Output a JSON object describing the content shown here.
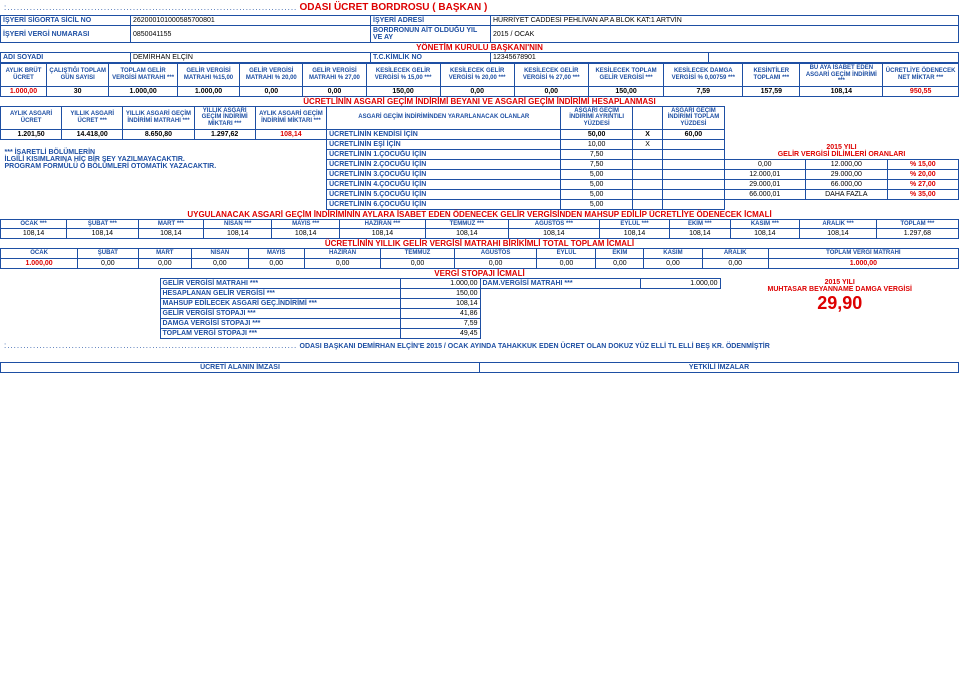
{
  "title_dots": ":..........................................................................................",
  "title_main": "ODASI ÜCRET BORDROSU  ( BAŞKAN )",
  "info": {
    "lbl1": "İŞYERİ SİGORTA SİCİL NO",
    "val1": "262000101000585700801",
    "lbl2": "İŞYERİ ADRESİ",
    "val2": "HÜRRİYET CADDESİ PEHLİVAN AP.A BLOK KAT:1 ARTVİN",
    "lbl3": "İŞYERİ VERGİ NUMARASI",
    "val3": "0850041155",
    "lbl4": "BORDRONUN AİT OLDUĞU YIL VE AY",
    "val4": "2015 / OCAK",
    "subhead": "YÖNETİM KURULU BAŞKANI'NIN",
    "lbl5": "ADI SOYADI",
    "val5": "DEMİRHAN ELÇİN",
    "lbl6": "T.C.KİMLİK NO",
    "val6": "12345678901"
  },
  "t1_hdr": [
    "AYLIK BRÜT ÜCRET",
    "ÇALIŞTIĞI TOPLAM GÜN SAYISI",
    "TOPLAM GELİR VERGİSİ MATRAHI ***",
    "GELİR VERGİSİ MATRAHI %15,00",
    "GELİR VERGİSİ MATRAHI % 20,00",
    "GELİR VERGİSİ MATRAHI % 27,00",
    "KESİLECEK GELİR VERGİSİ % 15,00 ***",
    "KESİLECEK GELİR VERGİSİ % 20,00 ***",
    "KESİLECEK GELİR VERGİSİ % 27,00 ***",
    "KESİLECEK TOPLAM GELİR VERGİSİ ***",
    "KESİLECEK DAMGA VERGİSİ % 0,00759 ***",
    "KESİNTİLER TOPLAMI ***",
    "BU AYA İSABET EDEN ASGARİ GEÇİM İNDİRİMİ ***",
    "ÜCRETLİYE ÖDENECEK NET MİKTAR ***"
  ],
  "t1_row": [
    "1.000,00",
    "30",
    "1.000,00",
    "1.000,00",
    "0,00",
    "0,00",
    "150,00",
    "0,00",
    "0,00",
    "150,00",
    "7,59",
    "157,59",
    "108,14",
    "950,55"
  ],
  "sect2_title": "ÜCRETLİNİN ASGARİ GEÇİM İNDİRİMİ BEYANI VE ASGARİ GEÇİM İNDİRİMİ HESAPLANMASI",
  "t2_hdr": [
    "AYLIK ASGARİ ÜCRET",
    "YILLIK ASGARİ ÜCRET ***",
    "YILLIK ASGARİ GEÇİM İNDİRİMİ MATRAHI ***",
    "YILLIK ASGARİ GEÇİM İNDİRİMİ MİKTARI ***",
    "AYLIK ASGARİ GEÇİM İNDİRİMİ MİKTARI ***",
    "ASGARİ GEÇİM İNDİRİMİNDEN YARARLANACAK OLANLAR",
    "ASGARİ GEÇİM İNDİRİMİ AYRINTILI YÜZDESİ",
    "",
    "ASGARİ GEÇİM İNDİRİMİ TOPLAM YÜZDESİ"
  ],
  "t2_r1": [
    "1.201,50",
    "14.418,00",
    "8.650,80",
    "1.297,62",
    "108,14",
    "ÜCRETLİNİN KENDİSİ İÇİN",
    "50,00",
    "X",
    "60,00"
  ],
  "t2_extra": [
    [
      "ÜCRETLİNİN EŞİ İÇİN",
      "10,00",
      "X",
      ""
    ],
    [
      "ÜCRETLİNİN 1.ÇOCUĞU İÇİN",
      "7,50",
      "",
      ""
    ],
    [
      "ÜCRETLİNİN 2.ÇOCUĞU İÇİN",
      "7,50",
      "",
      ""
    ],
    [
      "ÜCRETLİNİN 3.ÇOCUĞU İÇİN",
      "5,00",
      "",
      ""
    ],
    [
      "ÜCRETLİNİN 4.ÇOCUĞU İÇİN",
      "5,00",
      "",
      ""
    ],
    [
      "ÜCRETLİNİN 5.ÇOCUĞU İÇİN",
      "5,00",
      "",
      ""
    ],
    [
      "ÜCRETLİNİN 6.ÇOCUĞU İÇİN",
      "5,00",
      "",
      ""
    ]
  ],
  "note_l1": "*** İŞARETLİ BÖLÜMLERİN",
  "note_l2": "İLGİLİ KISIMLARINA HİÇ BİR ŞEY YAZILMAYACAKTIR.",
  "note_l3": "PROGRAM FORMÜLÜ O BÖLÜMLERİ OTOMATİK YAZACAKTIR.",
  "slab_title": "2015 YILI",
  "slab_title2": "GELİR VERGİSİ  DİLİMLERİ ORANLARI",
  "slabs": [
    [
      "0,00",
      "12.000,00",
      "% 15,00"
    ],
    [
      "12.000,01",
      "29.000,00",
      "% 20,00"
    ],
    [
      "29.000,01",
      "66.000,00",
      "% 27,00"
    ],
    [
      "66.000,01",
      "DAHA FAZLA",
      "% 35,00"
    ]
  ],
  "sect3_title": "UYGULANACAK ASGARİ GEÇİM İNDİRİMİNİN AYLARA İSABET EDEN ÖDENECEK GELİR VERGİSİNDEN MAHSUP EDİLİP ÜCRETLİYE ÖDENECEK İCMALİ",
  "months_hdr": [
    "OCAK ***",
    "ŞUBAT ***",
    "MART ***",
    "NİSAN ***",
    "MAYIS ***",
    "HAZİRAN ***",
    "TEMMUZ ***",
    "AĞUSTOS ***",
    "EYLÜL ***",
    "EKİM ***",
    "KASIM ***",
    "ARALIK ***",
    "TOPLAM ***"
  ],
  "months_row": [
    "108,14",
    "108,14",
    "108,14",
    "108,14",
    "108,14",
    "108,14",
    "108,14",
    "108,14",
    "108,14",
    "108,14",
    "108,14",
    "108,14",
    "1.297,68"
  ],
  "sect4_title": "ÜCRETLİNİN YILLIK GELİR VERGİSİ MATRAHI BİRİKİMLİ TOTAL TOPLAM İCMALİ",
  "months2_hdr": [
    "OCAK",
    "ŞUBAT",
    "MART",
    "NİSAN",
    "MAYIS",
    "HAZİRAN",
    "TEMMUZ",
    "AĞUSTOS",
    "EYLÜL",
    "EKİM",
    "KASIM",
    "ARALIK",
    "TOPLAM VERGİ MATRAHI"
  ],
  "months2_row": [
    "1.000,00",
    "0,00",
    "0,00",
    "0,00",
    "0,00",
    "0,00",
    "0,00",
    "0,00",
    "0,00",
    "0,00",
    "0,00",
    "0,00",
    "1.000,00"
  ],
  "sect5_title": "VERGİ STOPAJI  İCMALİ",
  "stopaj": [
    [
      "GELİR VERGİSİ MATRAHI ***",
      "1.000,00",
      "DAM.VERGİSİ MATRAHI ***",
      "1.000,00"
    ],
    [
      "HESAPLANAN GELİR VERGİSİ ***",
      "150,00",
      "",
      ""
    ],
    [
      "MAHSUP EDİLECEK ASGARİ GEÇ.İNDİRİMİ ***",
      "108,14",
      "",
      ""
    ],
    [
      "GELİR VERGİSİ STOPAJI ***",
      "41,86",
      "",
      ""
    ],
    [
      "DAMGA VERGİSİ STOPAJI ***",
      "7,59",
      "",
      ""
    ],
    [
      "TOPLAM VERGİ STOPAJI ***",
      "49,45",
      "",
      ""
    ]
  ],
  "damga_title": "2015 YILI",
  "damga_title2": "MUHTASAR BEYANNAME DAMGA VERGİSİ",
  "damga_val": "29,90",
  "footer_dots": ":..........................................................................................",
  "footer_text": "ODASI BAŞKANI DEMİRHAN ELÇİN'E 2015 / OCAK  AYINDA TAHAKKUK EDEN ÜCRET OLAN DOKUZ YÜZ ELLİ TL ELLİ BEŞ KR. ÖDENMİŞTİR",
  "sig1": "ÜCRETİ ALANIN İMZASI",
  "sig2": "YETKİLİ İMZALAR"
}
